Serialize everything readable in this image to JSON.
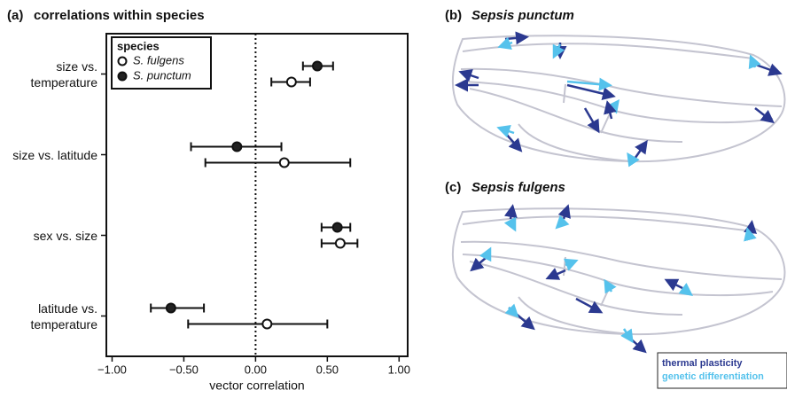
{
  "chart_data": {
    "type": "dotplot",
    "panel": "(a)",
    "title": "correlations within species",
    "categories": [
      "size vs. temperature",
      "size vs. latitude",
      "sex vs. size",
      "latitude vs. temperature"
    ],
    "series": [
      {
        "name": "S. fulgens",
        "color": "#ffffff",
        "values": [
          0.25,
          0.2,
          0.59,
          0.08
        ],
        "ci_low": [
          0.11,
          -0.35,
          0.46,
          -0.47
        ],
        "ci_high": [
          0.38,
          0.66,
          0.71,
          0.5
        ]
      },
      {
        "name": "S. punctum",
        "color": "#222222",
        "values": [
          0.43,
          -0.13,
          0.57,
          -0.59
        ],
        "ci_low": [
          0.33,
          -0.45,
          0.46,
          -0.73
        ],
        "ci_high": [
          0.54,
          0.18,
          0.66,
          -0.36
        ]
      }
    ],
    "xlabel": "vector correlation",
    "xlim": [
      -1.04,
      1.06
    ],
    "xticks": [
      {
        "value": -1,
        "label": "−1.00"
      },
      {
        "value": -0.5,
        "label": "−0.50"
      },
      {
        "value": 0,
        "label": "0.00"
      },
      {
        "value": 0.5,
        "label": "0.50"
      },
      {
        "value": 1,
        "label": "1.00"
      }
    ],
    "reference_line": 0,
    "legend_title": "species",
    "legend": "top-left"
  },
  "panels": [
    {
      "label": "(b)",
      "title": "Sepsis punctum"
    },
    {
      "label": "(c)",
      "title": "Sepsis fulgens"
    }
  ],
  "wing_legend": [
    "thermal plasticity",
    "genetic differentiation"
  ]
}
